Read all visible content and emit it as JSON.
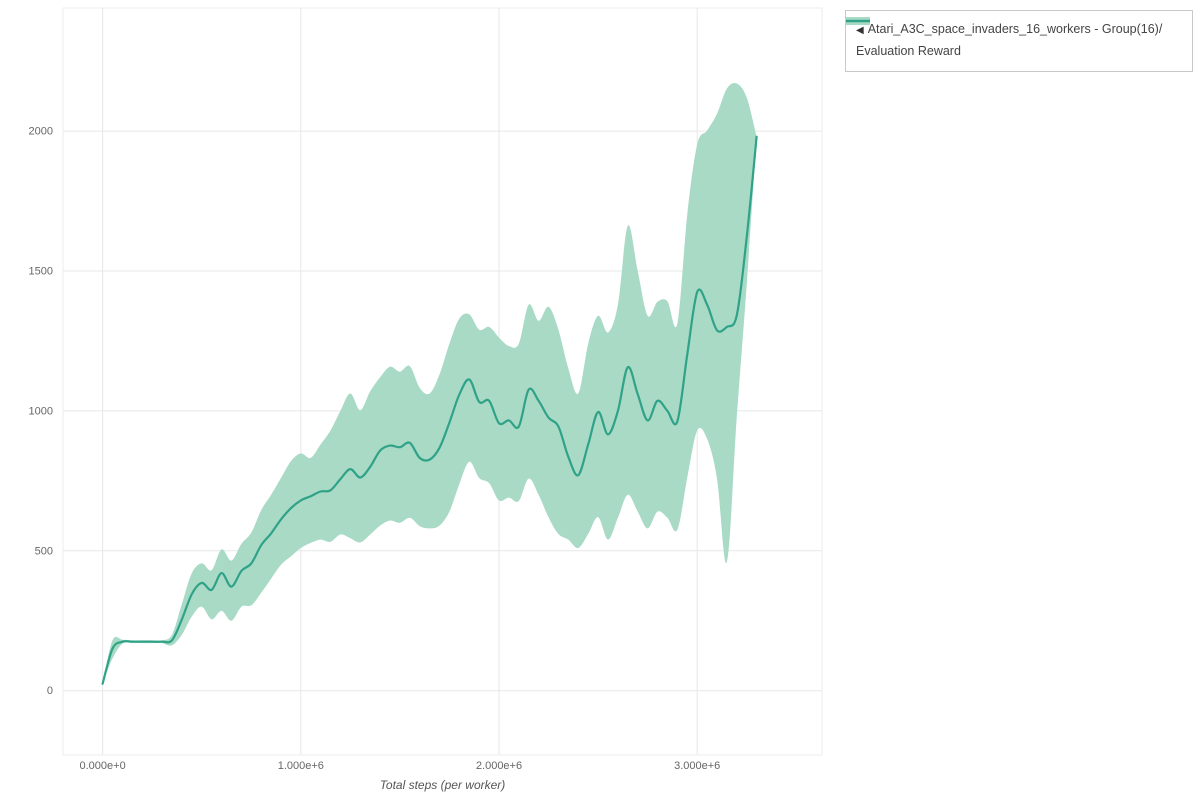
{
  "legend": {
    "toggle_icon": "◀",
    "series_name": "Atari_A3C_space_invaders_16_workers - Group(16)/",
    "series_name_line2": "Evaluation Reward"
  },
  "axes": {
    "x_label": "Total steps (per worker)"
  },
  "chart_data": {
    "type": "line",
    "title": "",
    "xlabel": "Total steps (per worker)",
    "ylabel": "",
    "legend_position": "top-right",
    "grid": true,
    "xlim": [
      -200000,
      3630000
    ],
    "ylim": [
      -230,
      2440
    ],
    "x_tick_values": [
      0,
      1000000,
      2000000,
      3000000
    ],
    "x_tick_labels": [
      "0.000e+0",
      "1.000e+6",
      "2.000e+6",
      "3.000e+6"
    ],
    "y_tick_values": [
      0,
      500,
      1000,
      1500,
      2000
    ],
    "y_tick_labels": [
      "0",
      "500",
      "1000",
      "1500",
      "2000"
    ],
    "colors": {
      "line": "#2fa287",
      "band": "#a8dac6",
      "grid": "#e7e7e7",
      "frame": "#ececec",
      "tick_text": "#666666"
    },
    "x": [
      0,
      50000,
      100000,
      150000,
      200000,
      250000,
      300000,
      350000,
      400000,
      450000,
      500000,
      550000,
      600000,
      650000,
      700000,
      750000,
      800000,
      850000,
      900000,
      950000,
      1000000,
      1050000,
      1100000,
      1150000,
      1200000,
      1250000,
      1300000,
      1350000,
      1400000,
      1450000,
      1500000,
      1550000,
      1600000,
      1650000,
      1700000,
      1750000,
      1800000,
      1850000,
      1900000,
      1950000,
      2000000,
      2050000,
      2100000,
      2150000,
      2200000,
      2250000,
      2300000,
      2350000,
      2400000,
      2450000,
      2500000,
      2550000,
      2600000,
      2650000,
      2700000,
      2750000,
      2800000,
      2850000,
      2900000,
      2950000,
      3000000,
      3050000,
      3100000,
      3150000,
      3200000,
      3250000,
      3300000
    ],
    "series": [
      {
        "name": "Atari_A3C_space_invaders_16_workers - Group(16)/Evaluation Reward",
        "values": [
          25,
          150,
          175,
          175,
          175,
          175,
          175,
          180,
          255,
          345,
          385,
          360,
          420,
          372,
          428,
          455,
          520,
          562,
          612,
          652,
          680,
          695,
          712,
          716,
          756,
          792,
          762,
          800,
          858,
          876,
          870,
          886,
          832,
          826,
          868,
          958,
          1058,
          1112,
          1032,
          1036,
          956,
          966,
          944,
          1076,
          1036,
          976,
          944,
          836,
          770,
          880,
          996,
          916,
          1000,
          1156,
          1060,
          966,
          1036,
          1000,
          962,
          1200,
          1425,
          1380,
          1288,
          1300,
          1342,
          1620,
          1980
        ],
        "band_lower": [
          25,
          115,
          168,
          170,
          170,
          170,
          170,
          162,
          200,
          265,
          300,
          255,
          285,
          250,
          300,
          305,
          350,
          400,
          450,
          480,
          510,
          528,
          540,
          532,
          558,
          545,
          530,
          558,
          590,
          608,
          600,
          618,
          588,
          580,
          590,
          640,
          738,
          818,
          760,
          742,
          680,
          690,
          678,
          758,
          700,
          620,
          560,
          540,
          510,
          560,
          620,
          540,
          618,
          700,
          640,
          580,
          640,
          618,
          575,
          760,
          930,
          900,
          758,
          460,
          980,
          1450,
          1980
        ],
        "band_upper": [
          25,
          180,
          182,
          180,
          180,
          180,
          180,
          200,
          310,
          420,
          455,
          430,
          505,
          465,
          525,
          565,
          645,
          700,
          760,
          820,
          848,
          832,
          880,
          930,
          1000,
          1062,
          1002,
          1070,
          1120,
          1158,
          1140,
          1160,
          1082,
          1062,
          1130,
          1240,
          1330,
          1345,
          1290,
          1300,
          1262,
          1232,
          1240,
          1380,
          1322,
          1372,
          1290,
          1152,
          1062,
          1240,
          1340,
          1280,
          1380,
          1662,
          1500,
          1340,
          1390,
          1392,
          1312,
          1700,
          1952,
          2002,
          2062,
          2152,
          2170,
          2120,
          1980
        ]
      }
    ]
  }
}
